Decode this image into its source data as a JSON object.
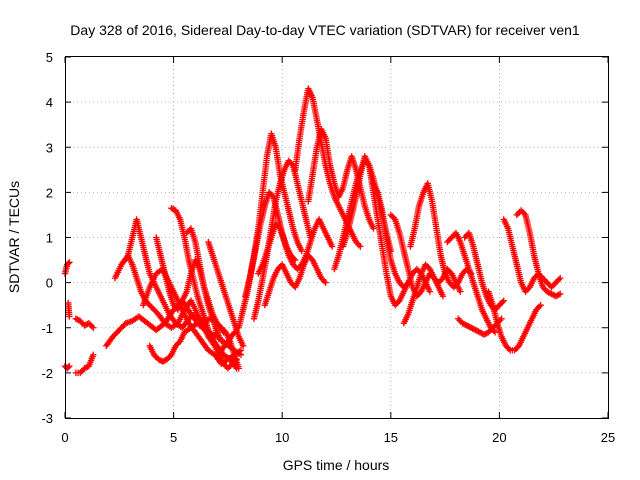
{
  "chart_data": {
    "type": "scatter",
    "title": "Day 328 of 2016, Sidereal Day-to-day VTEC variation (SDTVAR) for receiver ven1",
    "xlabel": "GPS time / hours",
    "ylabel": "SDTVAR / TECUs",
    "xlim": [
      0,
      25
    ],
    "ylim": [
      -3,
      5
    ],
    "xticks": [
      0,
      5,
      10,
      15,
      20,
      25
    ],
    "yticks": [
      -3,
      -2,
      -1,
      0,
      1,
      2,
      3,
      4,
      5
    ],
    "grid": true,
    "marker": "+",
    "color": "#ff0000",
    "series": [
      {
        "name": "s1",
        "x": [
          0.0,
          0.1,
          0.2
        ],
        "y": [
          -1.85,
          -1.9,
          -1.85
        ]
      },
      {
        "name": "s2",
        "x": [
          0.0,
          0.1,
          0.2
        ],
        "y": [
          0.2,
          0.4,
          0.45
        ]
      },
      {
        "name": "s3",
        "x": [
          0.15,
          0.2
        ],
        "y": [
          -0.45,
          -0.75
        ]
      },
      {
        "name": "s4",
        "x": [
          0.5,
          0.7,
          0.9,
          1.1,
          1.3
        ],
        "y": [
          -0.8,
          -0.85,
          -0.95,
          -0.9,
          -1.0
        ]
      },
      {
        "name": "s5",
        "x": [
          0.5,
          0.7,
          0.9,
          1.1,
          1.3
        ],
        "y": [
          -2.0,
          -2.0,
          -1.9,
          -1.85,
          -1.6
        ]
      },
      {
        "name": "s6",
        "x": [
          1.9,
          2.2,
          2.5,
          2.8,
          3.1,
          3.4,
          3.8,
          4.2,
          4.6,
          5.0,
          5.4,
          5.8,
          6.2,
          6.6,
          7.0,
          7.4,
          7.8,
          8.1
        ],
        "y": [
          -1.4,
          -1.2,
          -1.05,
          -0.9,
          -0.85,
          -0.75,
          -0.9,
          -1.05,
          -0.9,
          -0.6,
          -0.4,
          -0.7,
          -0.95,
          -1.1,
          -1.2,
          -1.35,
          -1.5,
          -1.6
        ]
      },
      {
        "name": "s7",
        "x": [
          2.3,
          2.6,
          2.9,
          3.1,
          3.3,
          3.5,
          3.7,
          4.0,
          4.3,
          4.6,
          4.9,
          5.2,
          5.5,
          5.8,
          6.1,
          6.4,
          6.7,
          7.0,
          7.3,
          7.6,
          7.9
        ],
        "y": [
          0.1,
          0.4,
          0.6,
          0.4,
          0.1,
          -0.2,
          -0.4,
          -0.55,
          -0.7,
          -0.9,
          -1.0,
          -0.9,
          -0.6,
          -0.4,
          -0.7,
          -1.0,
          -1.2,
          -1.4,
          -1.6,
          -1.7,
          -1.9
        ]
      },
      {
        "name": "s8",
        "x": [
          2.9,
          3.1,
          3.3,
          3.5,
          3.7,
          3.9,
          4.2,
          4.5,
          4.8,
          5.1,
          5.4,
          5.7,
          6.0,
          6.3,
          6.6,
          6.9,
          7.2,
          7.5,
          7.8
        ],
        "y": [
          0.6,
          1.0,
          1.4,
          1.0,
          0.6,
          0.2,
          -0.1,
          -0.4,
          -0.7,
          -0.9,
          -1.0,
          -0.8,
          -0.7,
          -0.9,
          -1.2,
          -1.4,
          -1.5,
          -1.3,
          -1.1
        ]
      },
      {
        "name": "s9",
        "x": [
          3.6,
          3.9,
          4.2,
          4.5,
          4.8,
          5.1,
          5.4,
          5.7,
          6.0,
          6.3,
          6.6,
          6.9,
          7.2,
          7.5,
          7.8,
          8.1
        ],
        "y": [
          -0.5,
          -0.1,
          0.2,
          0.3,
          0.0,
          -0.3,
          -0.6,
          -0.9,
          -1.1,
          -1.3,
          -1.5,
          -1.6,
          -1.8,
          -1.7,
          -1.6,
          -1.5
        ]
      },
      {
        "name": "s10",
        "x": [
          3.9,
          4.1,
          4.3,
          4.5,
          4.7,
          4.9,
          5.1,
          5.3,
          5.5,
          5.8,
          6.1,
          6.4,
          6.7,
          7.0,
          7.3
        ],
        "y": [
          -1.4,
          -1.6,
          -1.7,
          -1.75,
          -1.7,
          -1.6,
          -1.4,
          -1.3,
          -1.1,
          -1.0,
          -0.9,
          -0.85,
          -0.8,
          -0.9,
          -1.1
        ]
      },
      {
        "name": "s11",
        "x": [
          4.2,
          4.4,
          4.6,
          4.8,
          5.0,
          5.2,
          5.4,
          5.6,
          5.8,
          6.0,
          6.2,
          6.4,
          6.6,
          6.8,
          7.0,
          7.2
        ],
        "y": [
          1.0,
          0.6,
          0.2,
          -0.2,
          -0.5,
          -0.6,
          -0.4,
          -0.2,
          0.2,
          0.5,
          0.3,
          -0.1,
          -0.5,
          -0.8,
          -1.1,
          -1.3
        ]
      },
      {
        "name": "s12",
        "x": [
          4.9,
          5.1,
          5.3,
          5.5,
          5.7,
          5.9,
          6.1,
          6.3,
          6.5,
          6.7,
          6.9,
          7.1,
          7.3,
          7.5,
          7.7,
          7.9
        ],
        "y": [
          1.65,
          1.6,
          1.4,
          1.0,
          0.5,
          0.1,
          -0.3,
          -0.6,
          -0.9,
          -1.2,
          -1.4,
          -1.6,
          -1.8,
          -1.9,
          -1.8,
          -1.7
        ]
      },
      {
        "name": "s13",
        "x": [
          5.6,
          5.8,
          6.0,
          6.2,
          6.4,
          6.6,
          6.8,
          7.0,
          7.2,
          7.4,
          7.6,
          7.8,
          8.0
        ],
        "y": [
          1.1,
          1.2,
          0.9,
          0.4,
          -0.1,
          -0.4,
          -0.7,
          -0.9,
          -1.0,
          -1.1,
          -1.3,
          -1.6,
          -1.9
        ]
      },
      {
        "name": "s14",
        "x": [
          6.6,
          6.8,
          7.0,
          7.2,
          7.4,
          7.6,
          7.8,
          8.0,
          8.2
        ],
        "y": [
          0.9,
          0.6,
          0.3,
          0.0,
          -0.3,
          -0.6,
          -0.9,
          -1.2,
          -1.4
        ]
      },
      {
        "name": "s15",
        "x": [
          8.0,
          8.2,
          8.4,
          8.6,
          8.8,
          9.0,
          9.2,
          9.4,
          9.6,
          9.8,
          10.0,
          10.2,
          10.4,
          10.6
        ],
        "y": [
          -1.0,
          -0.6,
          -0.2,
          0.3,
          0.8,
          1.3,
          1.7,
          2.0,
          1.9,
          1.5,
          1.1,
          0.8,
          0.6,
          0.5
        ]
      },
      {
        "name": "s16",
        "x": [
          8.3,
          8.5,
          8.7,
          8.9,
          9.1,
          9.3,
          9.5,
          9.7,
          9.9,
          10.1,
          10.3,
          10.5,
          10.7,
          10.9
        ],
        "y": [
          -0.3,
          0.1,
          0.6,
          1.2,
          2.0,
          2.8,
          3.3,
          3.0,
          2.4,
          2.0,
          1.6,
          1.2,
          0.9,
          0.7
        ]
      },
      {
        "name": "s17",
        "x": [
          8.7,
          8.9,
          9.1,
          9.3,
          9.5,
          9.7,
          9.9,
          10.1,
          10.3,
          10.5,
          10.7,
          10.9,
          11.1,
          11.3
        ],
        "y": [
          -0.8,
          -0.4,
          0.1,
          0.6,
          1.2,
          1.8,
          2.2,
          2.5,
          2.7,
          2.6,
          2.2,
          1.8,
          1.4,
          1.0
        ]
      },
      {
        "name": "s18",
        "x": [
          8.9,
          9.1,
          9.3,
          9.5,
          9.7,
          9.9,
          10.1,
          10.3,
          10.5,
          10.7,
          10.9,
          11.1,
          11.3,
          11.5,
          11.7,
          11.9,
          12.1,
          12.3
        ],
        "y": [
          0.2,
          0.4,
          0.7,
          1.0,
          1.3,
          1.2,
          0.9,
          0.6,
          0.4,
          0.3,
          0.4,
          0.6,
          0.9,
          1.2,
          1.4,
          1.2,
          1.0,
          0.8
        ]
      },
      {
        "name": "s19",
        "x": [
          9.2,
          9.4,
          9.6,
          9.8,
          10.0,
          10.2,
          10.4,
          10.6,
          10.8,
          11.0,
          11.2,
          11.4,
          11.6,
          11.8,
          12.0
        ],
        "y": [
          -0.5,
          -0.2,
          0.1,
          0.3,
          0.4,
          0.2,
          0.0,
          -0.1,
          0.1,
          0.4,
          0.6,
          0.5,
          0.3,
          0.1,
          0.0
        ]
      },
      {
        "name": "s20",
        "x": [
          10.6,
          10.8,
          11.0,
          11.2,
          11.4,
          11.6,
          11.8,
          12.0,
          12.2,
          12.4,
          12.6,
          12.8,
          13.0,
          13.2,
          13.4,
          13.6
        ],
        "y": [
          2.5,
          3.2,
          3.8,
          4.3,
          4.1,
          3.6,
          3.1,
          2.6,
          2.2,
          1.9,
          1.7,
          1.5,
          1.3,
          1.1,
          0.9,
          0.8
        ]
      },
      {
        "name": "s21",
        "x": [
          11.2,
          11.4,
          11.6,
          11.8,
          12.0,
          12.2,
          12.4,
          12.6,
          12.8,
          13.0,
          13.2,
          13.4,
          13.6,
          13.8,
          14.0,
          14.2
        ],
        "y": [
          1.8,
          2.4,
          3.0,
          3.4,
          3.2,
          2.6,
          2.2,
          1.9,
          2.1,
          2.5,
          2.8,
          2.5,
          2.1,
          1.7,
          1.4,
          1.2
        ]
      },
      {
        "name": "s22",
        "x": [
          12.4,
          12.6,
          12.8,
          13.0,
          13.2,
          13.4,
          13.6,
          13.8,
          14.0,
          14.2,
          14.4,
          14.6,
          14.8,
          15.0
        ],
        "y": [
          0.3,
          0.6,
          1.0,
          1.4,
          1.8,
          2.2,
          2.5,
          2.7,
          2.6,
          2.3,
          1.9,
          1.5,
          1.1,
          0.7
        ]
      },
      {
        "name": "s23",
        "x": [
          12.8,
          13.0,
          13.2,
          13.4,
          13.6,
          13.8,
          14.0,
          14.2,
          14.4,
          14.6,
          14.8,
          15.0,
          15.2,
          15.4,
          15.6,
          15.8
        ],
        "y": [
          0.8,
          1.1,
          1.5,
          1.9,
          2.4,
          2.8,
          2.6,
          2.0,
          1.4,
          0.8,
          0.2,
          -0.3,
          -0.5,
          -0.4,
          -0.2,
          0.0
        ]
      },
      {
        "name": "s24",
        "x": [
          14.2,
          14.4,
          14.6,
          14.8,
          15.0,
          15.2,
          15.4,
          15.6,
          15.8,
          16.0,
          16.2,
          16.4,
          16.6,
          16.8
        ],
        "y": [
          2.2,
          2.0,
          1.6,
          1.0,
          0.5,
          0.2,
          0.0,
          -0.1,
          0.0,
          0.2,
          0.3,
          0.2,
          0.0,
          -0.2
        ]
      },
      {
        "name": "s25",
        "x": [
          15.0,
          15.2,
          15.4,
          15.6,
          15.8,
          16.0,
          16.2,
          16.4,
          16.6,
          16.8,
          17.0,
          17.2,
          17.4
        ],
        "y": [
          1.5,
          1.4,
          1.1,
          0.7,
          0.3,
          -0.1,
          -0.3,
          -0.2,
          0.0,
          0.2,
          0.1,
          -0.1,
          -0.3
        ]
      },
      {
        "name": "s26",
        "x": [
          15.6,
          15.8,
          16.0,
          16.2,
          16.4,
          16.6,
          16.8,
          17.0,
          17.2,
          17.4,
          17.6,
          17.8,
          18.0,
          18.2
        ],
        "y": [
          -0.9,
          -0.7,
          -0.4,
          -0.1,
          0.2,
          0.4,
          0.3,
          0.1,
          0.0,
          0.1,
          0.3,
          0.2,
          0.0,
          -0.2
        ]
      },
      {
        "name": "s27",
        "x": [
          15.9,
          16.1,
          16.3,
          16.5,
          16.7,
          16.9,
          17.1,
          17.3,
          17.5,
          17.7,
          17.9,
          18.1,
          18.3,
          18.5,
          18.7
        ],
        "y": [
          0.8,
          1.2,
          1.7,
          2.0,
          2.2,
          1.8,
          1.2,
          0.6,
          0.2,
          0.0,
          -0.1,
          0.0,
          0.2,
          0.3,
          0.2
        ]
      },
      {
        "name": "s28",
        "x": [
          17.6,
          17.8,
          18.0,
          18.2,
          18.4,
          18.6,
          18.8,
          19.0,
          19.2,
          19.4,
          19.6,
          19.8
        ],
        "y": [
          0.9,
          1.0,
          1.1,
          0.9,
          0.6,
          0.3,
          0.0,
          -0.3,
          -0.6,
          -0.8,
          -1.0,
          -1.1
        ]
      },
      {
        "name": "s29",
        "x": [
          18.1,
          18.3,
          18.5,
          18.7,
          18.9,
          19.1,
          19.3,
          19.5,
          19.7,
          19.9,
          20.1
        ],
        "y": [
          -0.8,
          -0.9,
          -0.95,
          -1.0,
          -1.05,
          -1.1,
          -1.15,
          -1.1,
          -1.0,
          -0.9,
          -0.8
        ]
      },
      {
        "name": "s30",
        "x": [
          18.4,
          18.6,
          18.8,
          19.0,
          19.2,
          19.4,
          19.6,
          19.8,
          20.0,
          20.2
        ],
        "y": [
          1.0,
          1.1,
          0.8,
          0.4,
          0.0,
          -0.3,
          -0.5,
          -0.6,
          -0.5,
          -0.4
        ]
      },
      {
        "name": "s31",
        "x": [
          19.5,
          19.7,
          19.9,
          20.1,
          20.3,
          20.5,
          20.7,
          20.9,
          21.1,
          21.3,
          21.5,
          21.7,
          21.9
        ],
        "y": [
          -0.2,
          -0.5,
          -0.9,
          -1.2,
          -1.4,
          -1.5,
          -1.5,
          -1.4,
          -1.2,
          -1.0,
          -0.8,
          -0.6,
          -0.5
        ]
      },
      {
        "name": "s32",
        "x": [
          20.2,
          20.4,
          20.6,
          20.8,
          21.0,
          21.2,
          21.4,
          21.6,
          21.8,
          22.0,
          22.2,
          22.4,
          22.6,
          22.8
        ],
        "y": [
          1.4,
          1.2,
          0.8,
          0.4,
          0.0,
          -0.2,
          -0.1,
          0.1,
          0.2,
          0.1,
          0.0,
          -0.1,
          0.0,
          0.1
        ]
      },
      {
        "name": "s33",
        "x": [
          20.8,
          21.0,
          21.2,
          21.4,
          21.6,
          21.8,
          22.0,
          22.2,
          22.4,
          22.6,
          22.8
        ],
        "y": [
          1.5,
          1.6,
          1.5,
          1.1,
          0.6,
          0.2,
          -0.1,
          -0.2,
          -0.25,
          -0.3,
          -0.25
        ]
      }
    ]
  }
}
